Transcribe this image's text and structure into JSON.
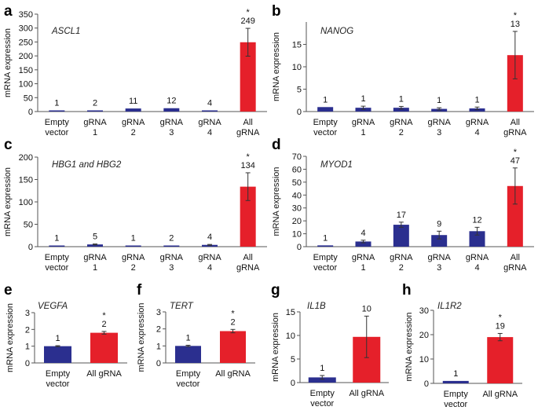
{
  "colors": {
    "control": "#2b2f8f",
    "treated": "#e5202a",
    "axis": "#555555"
  },
  "chart_data": [
    {
      "type": "bar",
      "panel": "a",
      "gene": "ASCL1",
      "ylabel": "mRNA expression",
      "ylim": [
        0,
        350
      ],
      "yticks": [
        0,
        50,
        100,
        150,
        200,
        250,
        300,
        350
      ],
      "categories": [
        [
          "Empty",
          "vector"
        ],
        [
          "gRNA",
          "1"
        ],
        [
          "gRNA",
          "2"
        ],
        [
          "gRNA",
          "3"
        ],
        [
          "gRNA",
          "4"
        ],
        [
          "All",
          "gRNA"
        ]
      ],
      "values": [
        1,
        2,
        11,
        12,
        4,
        249
      ],
      "errors": [
        0,
        0,
        0,
        0,
        0,
        50
      ],
      "labels": [
        "1",
        "2",
        "11",
        "12",
        "4",
        "249"
      ],
      "significance": [
        "",
        "",
        "",
        "",
        "",
        "*"
      ]
    },
    {
      "type": "bar",
      "panel": "b",
      "gene": "NANOG",
      "ylabel": "mRNA expression",
      "ylim": [
        0,
        20
      ],
      "yticks": [
        0,
        5,
        10,
        15
      ],
      "categories": [
        [
          "Empty",
          "vector"
        ],
        [
          "gRNA",
          "1"
        ],
        [
          "gRNA",
          "2"
        ],
        [
          "gRNA",
          "3"
        ],
        [
          "gRNA",
          "4"
        ],
        [
          "All",
          "gRNA"
        ]
      ],
      "values": [
        1,
        0.85,
        0.85,
        0.6,
        0.7,
        12.6
      ],
      "errors": [
        0,
        0.35,
        0.3,
        0.25,
        0.3,
        5.3
      ],
      "labels": [
        "1",
        "1",
        "1",
        "1",
        "1",
        "13"
      ],
      "significance": [
        "",
        "",
        "",
        "",
        "",
        "*"
      ]
    },
    {
      "type": "bar",
      "panel": "c",
      "gene": "HBG1 and HBG2",
      "ylabel": "mRNA expression",
      "ylim": [
        0,
        200
      ],
      "yticks": [
        0,
        50,
        100,
        150,
        200
      ],
      "categories": [
        [
          "Empty",
          "vector"
        ],
        [
          "gRNA",
          "1"
        ],
        [
          "gRNA",
          "2"
        ],
        [
          "gRNA",
          "3"
        ],
        [
          "gRNA",
          "4"
        ],
        [
          "All",
          "gRNA"
        ]
      ],
      "values": [
        1,
        5,
        1,
        2,
        4,
        134
      ],
      "errors": [
        0,
        1,
        0,
        0,
        1,
        31
      ],
      "labels": [
        "1",
        "5",
        "1",
        "2",
        "4",
        "134"
      ],
      "significance": [
        "",
        "",
        "",
        "",
        "",
        "*"
      ]
    },
    {
      "type": "bar",
      "panel": "d",
      "gene": "MYOD1",
      "ylabel": "mRNA expression",
      "ylim": [
        0,
        70
      ],
      "yticks": [
        0,
        10,
        20,
        30,
        40,
        50,
        60,
        70
      ],
      "categories": [
        [
          "Empty",
          "vector"
        ],
        [
          "gRNA",
          "1"
        ],
        [
          "gRNA",
          "2"
        ],
        [
          "gRNA",
          "3"
        ],
        [
          "gRNA",
          "4"
        ],
        [
          "All",
          "gRNA"
        ]
      ],
      "values": [
        1,
        4,
        17,
        9,
        12,
        47
      ],
      "errors": [
        0,
        1,
        2,
        3,
        3,
        14
      ],
      "labels": [
        "1",
        "4",
        "17",
        "9",
        "12",
        "47"
      ],
      "significance": [
        "",
        "",
        "",
        "",
        "",
        "*"
      ]
    },
    {
      "type": "bar",
      "panel": "e",
      "gene": "VEGFA",
      "ylabel": "mRNA expression",
      "ylim": [
        0,
        3
      ],
      "yticks": [
        0,
        1,
        2,
        3
      ],
      "categories": [
        [
          "Empty",
          "vector"
        ],
        [
          "All gRNA"
        ]
      ],
      "values": [
        1,
        1.8
      ],
      "errors": [
        0.03,
        0.08
      ],
      "labels": [
        "1",
        "2"
      ],
      "significance": [
        "",
        "*"
      ]
    },
    {
      "type": "bar",
      "panel": "f",
      "gene": "TERT",
      "ylabel": "mRNA expression",
      "ylim": [
        0,
        3
      ],
      "yticks": [
        0,
        1,
        2,
        3
      ],
      "categories": [
        [
          "Empty",
          "vector"
        ],
        [
          "All gRNA"
        ]
      ],
      "values": [
        1,
        1.87
      ],
      "errors": [
        0.04,
        0.1
      ],
      "labels": [
        "1",
        "2"
      ],
      "significance": [
        "",
        "*"
      ]
    },
    {
      "type": "bar",
      "panel": "g",
      "gene": "IL1B",
      "ylabel": "mRNA expression",
      "ylim": [
        0,
        15
      ],
      "yticks": [
        0,
        5,
        10,
        15
      ],
      "categories": [
        [
          "Empty",
          "vector"
        ],
        [
          "All gRNA"
        ]
      ],
      "values": [
        1.1,
        9.7
      ],
      "errors": [
        0.4,
        4.4
      ],
      "labels": [
        "1",
        "10"
      ],
      "significance": [
        "",
        ""
      ]
    },
    {
      "type": "bar",
      "panel": "h",
      "gene": "IL1R2",
      "ylabel": "mRNA expression",
      "ylim": [
        0,
        30
      ],
      "yticks": [
        0,
        10,
        20,
        30
      ],
      "categories": [
        [
          "Empty",
          "vector"
        ],
        [
          "All gRNA"
        ]
      ],
      "values": [
        1,
        19
      ],
      "errors": [
        0,
        1.5
      ],
      "labels": [
        "1",
        "19"
      ],
      "significance": [
        "",
        "*"
      ]
    }
  ]
}
